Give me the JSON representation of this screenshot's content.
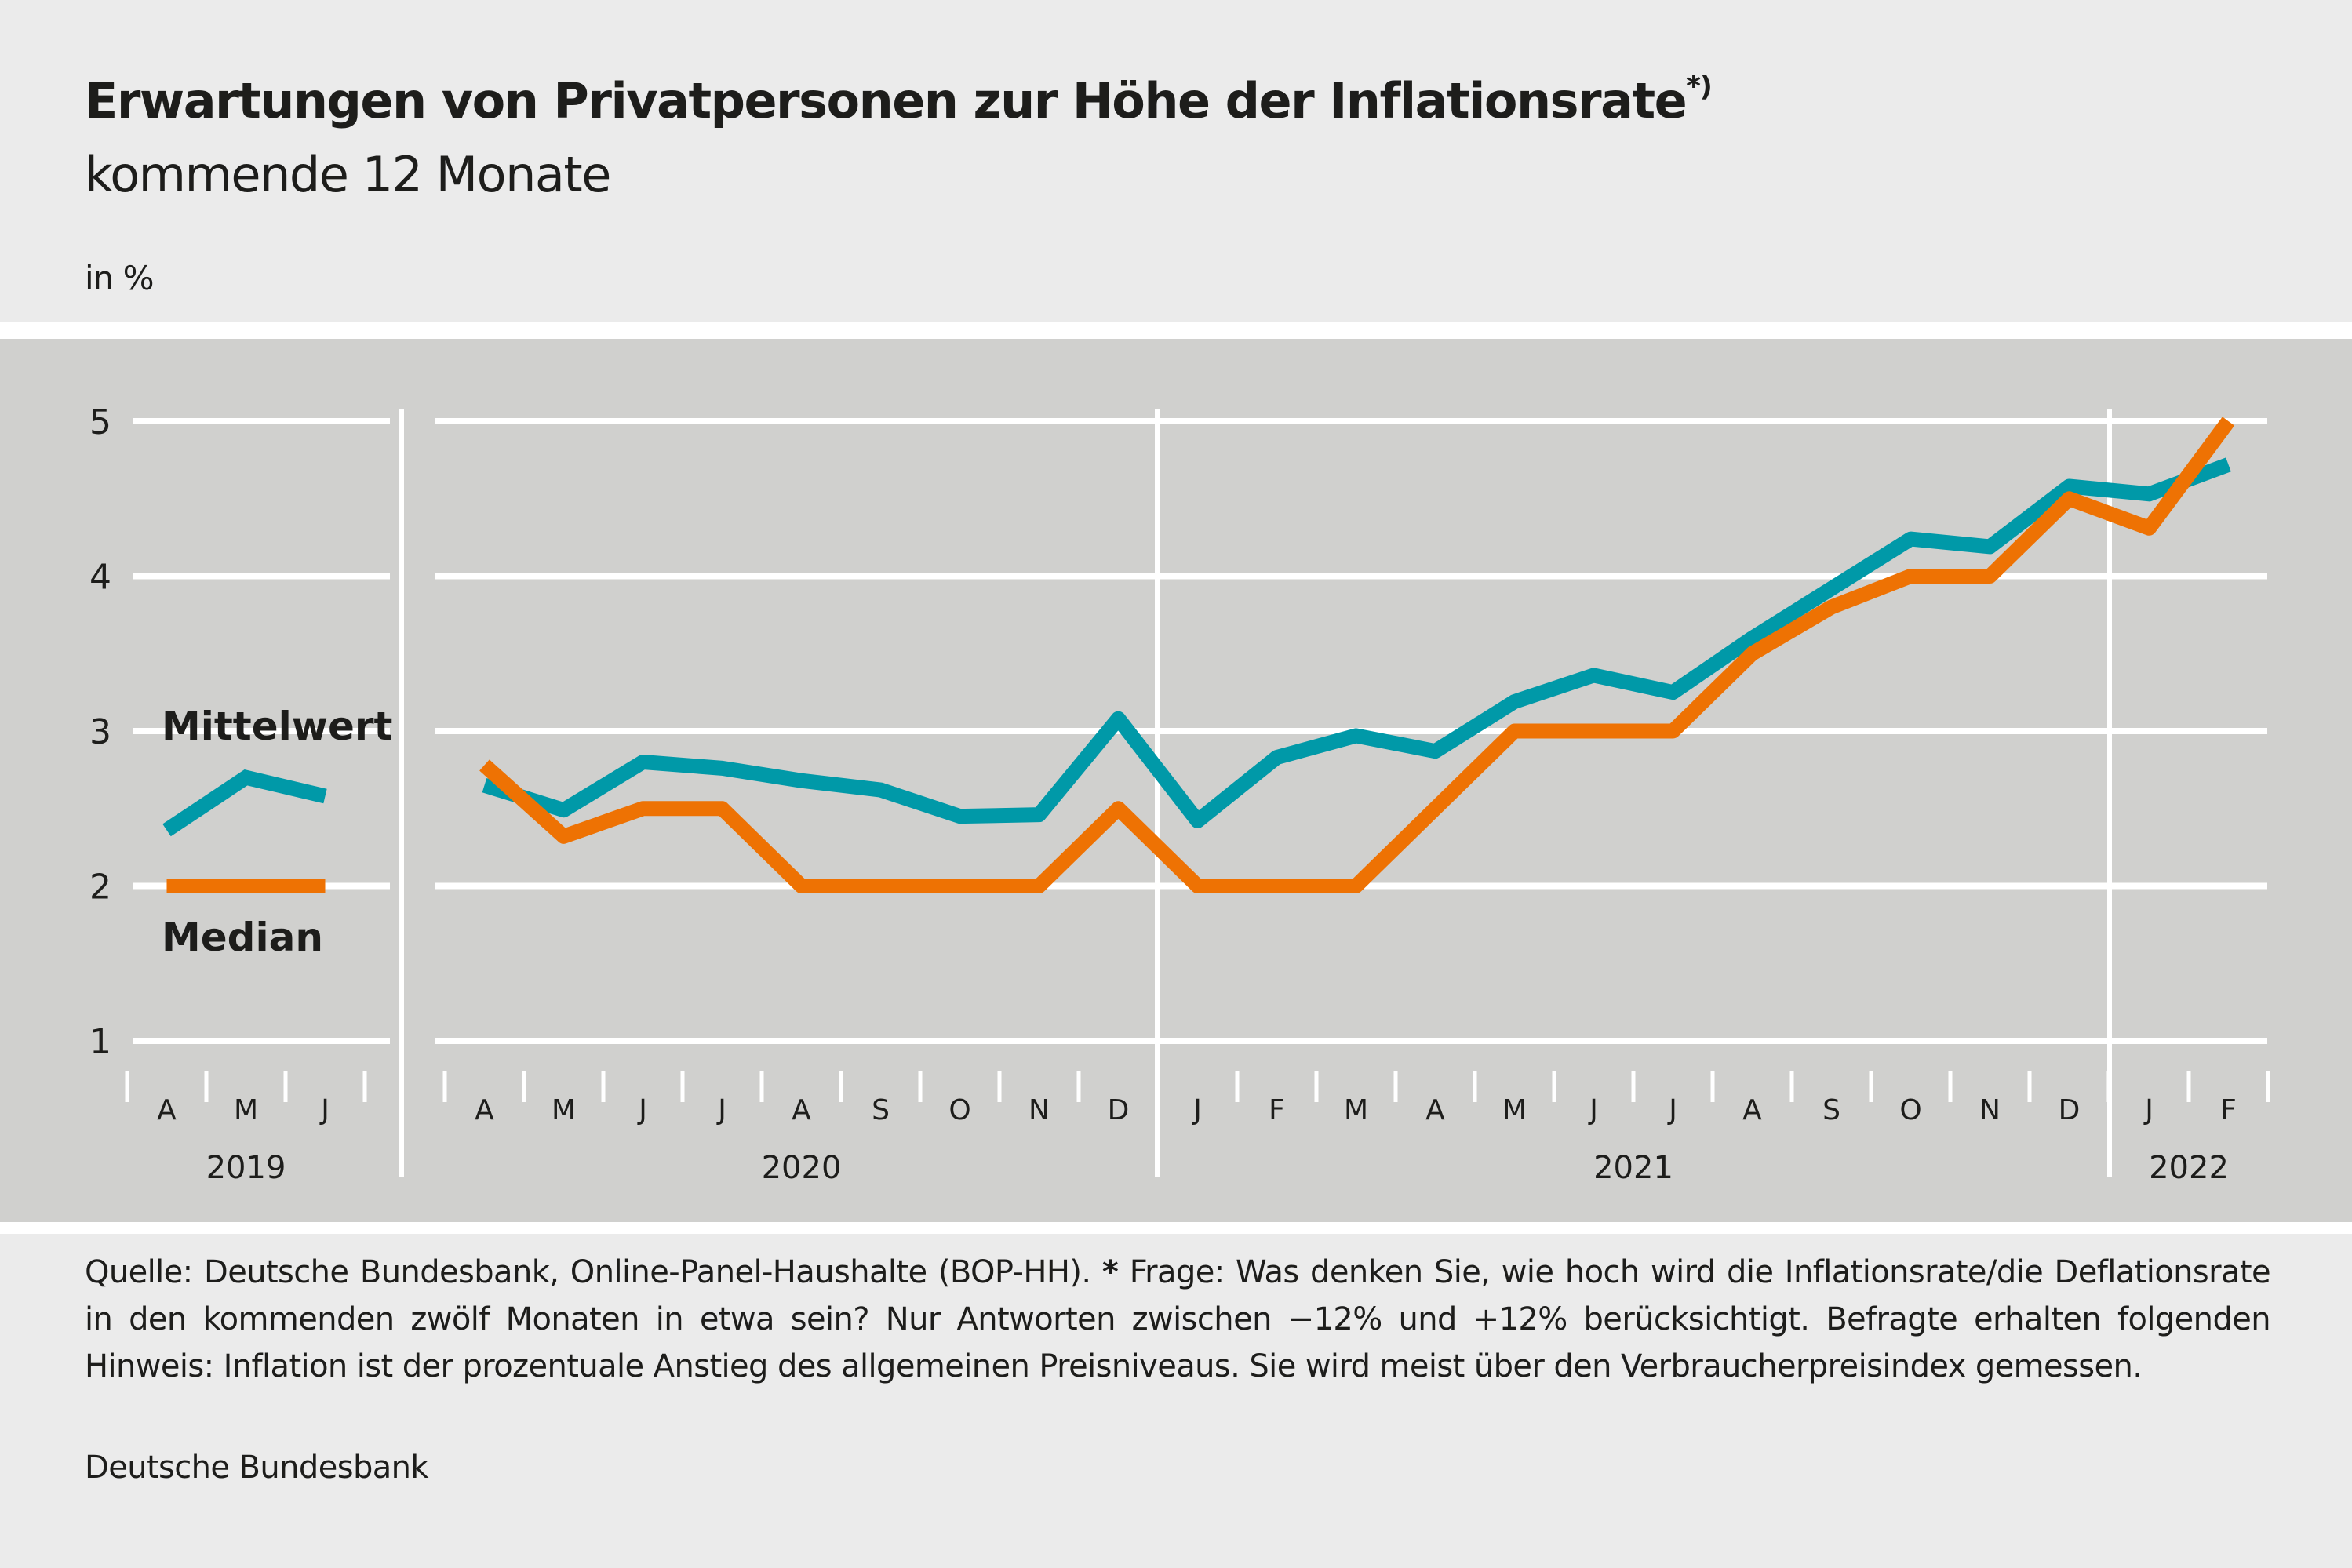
{
  "header": {
    "title": "Erwartungen von Privatpersonen zur Höhe der Inflationsrate",
    "title_footnote_mark": "*)",
    "subtitle": "kommende 12 Monate",
    "unit": "in %"
  },
  "colors": {
    "mittelwert": "#0099a8",
    "median": "#ee7203",
    "chart_background": "#d0d0ce",
    "page_background": "#ebebeb",
    "grid": "#ffffff"
  },
  "chart_data": {
    "type": "line",
    "title": "Erwartungen von Privatpersonen zur Höhe der Inflationsrate*) kommende 12 Monate",
    "xlabel": "",
    "ylabel": "in %",
    "ylim": [
      1,
      5
    ],
    "yticks": [
      1,
      2,
      3,
      4,
      5
    ],
    "grid": true,
    "legend_placement": "left panel (2019), labels beside lines",
    "groups": [
      {
        "year": "2019",
        "months": [
          "A",
          "M",
          "J"
        ]
      },
      {
        "year": "2020",
        "months": [
          "A",
          "M",
          "J",
          "J",
          "A",
          "S",
          "O",
          "N",
          "D"
        ]
      },
      {
        "year": "2021",
        "months": [
          "J",
          "F",
          "M",
          "A",
          "M",
          "J",
          "J",
          "A",
          "S",
          "O",
          "N",
          "D"
        ]
      },
      {
        "year": "2022",
        "months": [
          "J",
          "F"
        ]
      }
    ],
    "series": [
      {
        "name": "Mittelwert",
        "values_by_group": [
          [
            2.36,
            2.7,
            2.58
          ],
          [
            2.65,
            2.49,
            2.8,
            2.76,
            2.68,
            2.62,
            2.45,
            2.46,
            3.08
          ],
          [
            2.42,
            2.83,
            2.97,
            2.87,
            3.19,
            3.36,
            3.25,
            3.6,
            3.92,
            4.24,
            4.19,
            4.58
          ],
          [
            4.53,
            4.72
          ]
        ]
      },
      {
        "name": "Median",
        "values_by_group": [
          [
            2.0,
            2.0,
            2.0
          ],
          [
            2.78,
            2.32,
            2.5,
            2.5,
            2.0,
            2.0,
            2.0,
            2.0,
            2.5
          ],
          [
            2.0,
            2.0,
            2.0,
            2.5,
            3.0,
            3.0,
            3.0,
            3.5,
            3.8,
            4.0,
            4.0,
            4.5
          ],
          [
            4.31,
            5.0
          ]
        ]
      }
    ],
    "legend": [
      {
        "label": "Mittelwert",
        "series": "Mittelwert"
      },
      {
        "label": "Median",
        "series": "Median"
      }
    ]
  },
  "footer": {
    "source_prefix": "Quelle: Deutsche Bundesbank, Online-Panel-Haushalte (BOP-HH).",
    "asterisk": "*",
    "source_text": "Frage: Was denken Sie, wie hoch wird die Inflationsrate/die Deflationsrate in den kommenden zwölf Monaten in etwa sein? Nur Antworten zwischen −12% und +12% berücksichtigt. Befragte erhalten folgenden Hinweis: Inflation ist der prozentuale Anstieg des allgemeinen Preisniveaus. Sie wird meist über den Verbraucherpreisindex gemessen.",
    "credit": "Deutsche Bundesbank"
  }
}
